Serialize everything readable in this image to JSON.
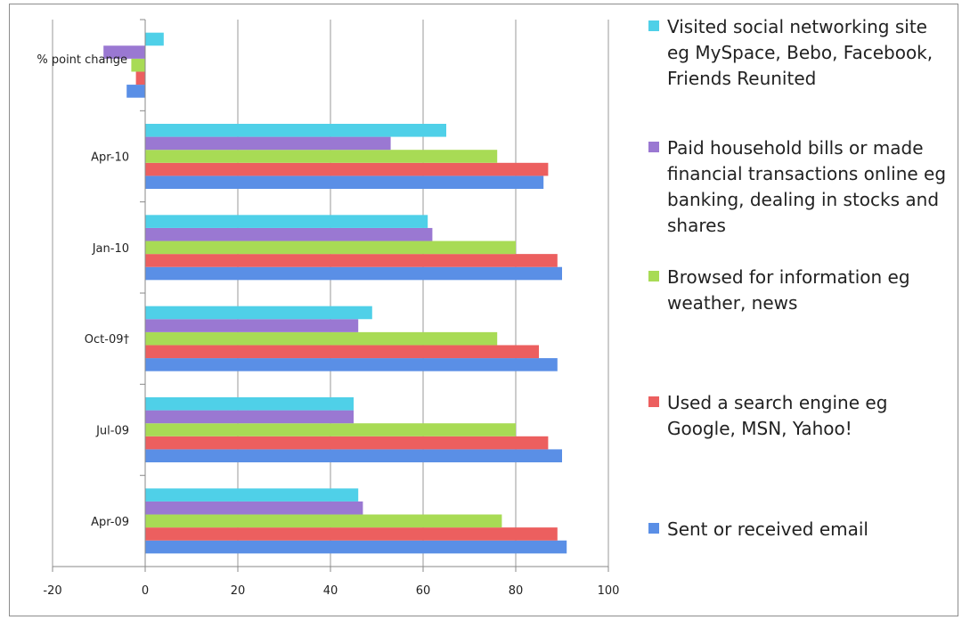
{
  "chart_data": {
    "type": "bar",
    "orientation": "horizontal",
    "categories": [
      "Apr-09",
      "Jul-09",
      "Oct-09†",
      "Jan-10",
      "Apr-10",
      "% point change"
    ],
    "series": [
      {
        "name": "Sent or received email",
        "color": "#5a8fe6",
        "values": [
          91,
          90,
          89,
          90,
          86,
          -4
        ]
      },
      {
        "name": "Used a search engine eg Google, MSN, Yahoo!",
        "color": "#ec5f5f",
        "values": [
          89,
          87,
          85,
          89,
          87,
          -2
        ]
      },
      {
        "name": "Browsed for information eg weather, news",
        "color": "#a8db55",
        "values": [
          77,
          80,
          76,
          80,
          76,
          -3
        ]
      },
      {
        "name": "Paid household bills or made financial transactions online eg banking, dealing in stocks and shares",
        "color": "#9a78d2",
        "values": [
          47,
          45,
          46,
          62,
          53,
          -9
        ]
      },
      {
        "name": "Visited social networking site eg MySpace, Bebo, Facebook, Friends Reunited",
        "color": "#4fd0e8",
        "values": [
          46,
          45,
          49,
          61,
          65,
          4
        ]
      }
    ],
    "xlim": [
      -20,
      100
    ],
    "xticks": [
      -20,
      0,
      20,
      40,
      60,
      80,
      100
    ],
    "xtick_labels": [
      "-20",
      "0",
      "20",
      "40",
      "60",
      "80",
      "100"
    ],
    "grid": true,
    "legend_position": "right",
    "title": "",
    "xlabel": "",
    "ylabel": ""
  }
}
